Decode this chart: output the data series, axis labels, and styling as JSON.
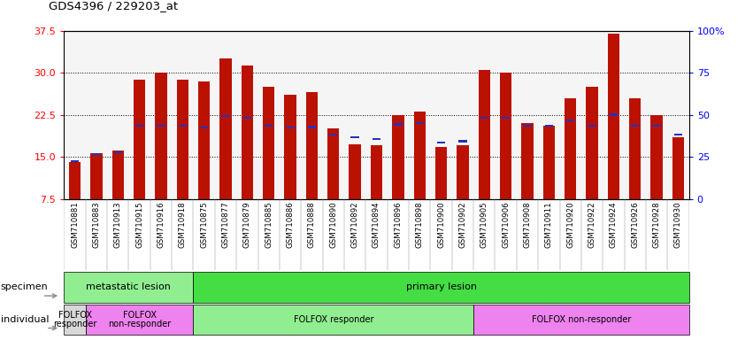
{
  "title": "GDS4396 / 229203_at",
  "samples": [
    "GSM710881",
    "GSM710883",
    "GSM710913",
    "GSM710915",
    "GSM710916",
    "GSM710918",
    "GSM710875",
    "GSM710877",
    "GSM710879",
    "GSM710885",
    "GSM710886",
    "GSM710888",
    "GSM710890",
    "GSM710892",
    "GSM710894",
    "GSM710896",
    "GSM710898",
    "GSM710900",
    "GSM710902",
    "GSM710905",
    "GSM710906",
    "GSM710908",
    "GSM710911",
    "GSM710920",
    "GSM710922",
    "GSM710924",
    "GSM710926",
    "GSM710928",
    "GSM710930"
  ],
  "count_values": [
    14.0,
    15.7,
    16.2,
    28.7,
    30.0,
    28.7,
    28.5,
    32.5,
    31.2,
    27.5,
    26.0,
    26.5,
    20.0,
    17.2,
    17.0,
    22.5,
    23.0,
    16.8,
    17.0,
    30.5,
    30.0,
    21.0,
    20.5,
    25.5,
    27.5,
    37.0,
    25.5,
    22.5,
    18.5
  ],
  "percentile_values": [
    14.2,
    15.5,
    15.8,
    20.5,
    20.5,
    20.5,
    20.2,
    22.3,
    22.0,
    20.5,
    20.2,
    20.3,
    19.0,
    18.5,
    18.2,
    20.8,
    21.0,
    17.5,
    17.8,
    22.0,
    22.0,
    20.5,
    20.5,
    21.5,
    20.5,
    22.5,
    20.5,
    20.5,
    19.0
  ],
  "ylim_left": [
    7.5,
    37.5
  ],
  "yticks_left": [
    7.5,
    15.0,
    22.5,
    30.0,
    37.5
  ],
  "ylim_right": [
    0,
    100
  ],
  "yticks_right": [
    0,
    25,
    50,
    75,
    100
  ],
  "yticklabels_right": [
    "0",
    "25",
    "50",
    "75",
    "100%"
  ],
  "bar_color": "#BB1100",
  "percentile_color": "#2233BB",
  "bg_color": "#D8D8D8",
  "plot_bg": "#F5F5F5",
  "specimen_groups": [
    {
      "label": "metastatic lesion",
      "start": 0,
      "end": 6,
      "color": "#90EE90"
    },
    {
      "label": "primary lesion",
      "start": 6,
      "end": 29,
      "color": "#44DD44"
    }
  ],
  "individual_groups": [
    {
      "label": "FOLFOX\nresponder",
      "start": 0,
      "end": 1,
      "color": "#E0E0E0"
    },
    {
      "label": "FOLFOX\nnon-responder",
      "start": 1,
      "end": 6,
      "color": "#EE82EE"
    },
    {
      "label": "FOLFOX responder",
      "start": 6,
      "end": 19,
      "color": "#90EE90"
    },
    {
      "label": "FOLFOX non-responder",
      "start": 19,
      "end": 29,
      "color": "#EE82EE"
    }
  ]
}
